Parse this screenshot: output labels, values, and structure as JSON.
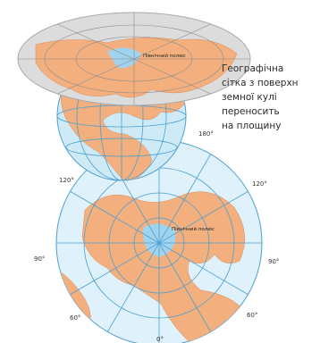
{
  "caption": {
    "lines": [
      "Географічна",
      "сітка з поверхн",
      "земної кулі",
      "переносить",
      "на площину"
    ]
  },
  "labels": {
    "pole_top": "Північний полюс",
    "pole_bottom": "Північний полюс",
    "meridians": [
      "180°",
      "120°",
      "120°",
      "90°",
      "90°",
      "60°",
      "60°",
      "0°"
    ]
  }
}
